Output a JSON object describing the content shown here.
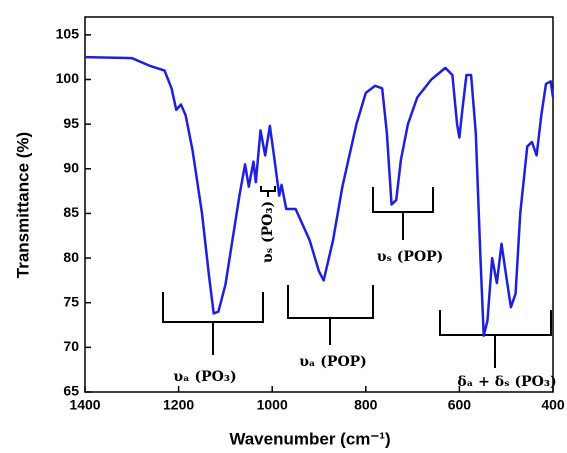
{
  "chart_data": {
    "type": "line",
    "xlabel": "Wavenumber (cm⁻¹)",
    "ylabel": "Transmittance (%)",
    "xlim": [
      1400,
      400
    ],
    "ylim": [
      65,
      107
    ],
    "xticks": [
      1400,
      1200,
      1000,
      800,
      600,
      400
    ],
    "yticks": [
      65,
      70,
      75,
      80,
      85,
      90,
      95,
      100,
      105
    ],
    "x": [
      1400,
      1300,
      1260,
      1230,
      1215,
      1205,
      1195,
      1185,
      1170,
      1150,
      1135,
      1125,
      1115,
      1100,
      1085,
      1070,
      1058,
      1050,
      1040,
      1035,
      1025,
      1015,
      1005,
      995,
      985,
      980,
      970,
      950,
      920,
      900,
      890,
      870,
      850,
      820,
      800,
      780,
      765,
      755,
      745,
      735,
      725,
      710,
      690,
      660,
      630,
      615,
      605,
      600,
      595,
      585,
      575,
      565,
      555,
      548,
      540,
      530,
      520,
      510,
      500,
      490,
      480,
      470,
      455,
      445,
      435,
      425,
      415,
      405,
      400
    ],
    "series": [
      {
        "color": "#1f1fe0",
        "values": [
          102.5,
          102.4,
          101.5,
          101,
          99,
          96.6,
          97.2,
          96,
          92,
          85,
          78,
          73.8,
          74,
          77,
          82,
          87,
          90.5,
          88,
          90.8,
          88.5,
          94.3,
          91.5,
          94.8,
          91,
          87,
          88.2,
          85.5,
          85.5,
          82,
          78.5,
          77.5,
          82,
          88,
          95,
          98.5,
          99.3,
          99,
          94,
          86,
          86.5,
          91,
          95,
          98,
          100,
          101.3,
          100.5,
          95,
          93.5,
          96,
          100.5,
          100.5,
          94,
          80,
          71.3,
          73,
          80,
          77.2,
          81.6,
          78,
          74.5,
          76,
          85,
          92.5,
          93,
          91.5,
          96,
          99.5,
          99.8,
          98
        ]
      }
    ],
    "annotations": [
      "υₐ (PO₃)",
      "υₛ (PO₃)",
      "υₐ (POP)",
      "υₛ (POP)",
      "δₐ + δₛ (PO₃)"
    ]
  }
}
